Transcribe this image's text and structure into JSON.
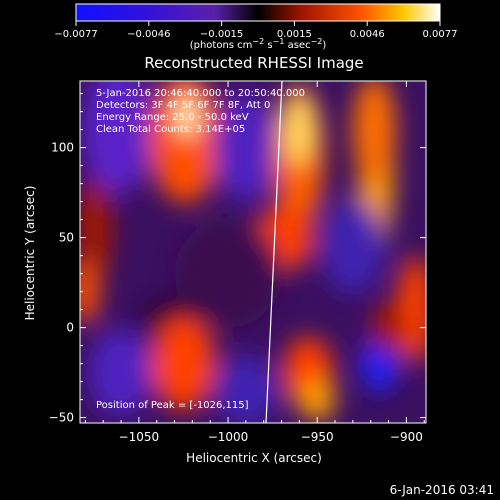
{
  "colorbar": {
    "ticks": [
      "-0.0077",
      "-0.0046",
      "-0.0015",
      "0.0015",
      "0.0046",
      "0.0077"
    ],
    "unit_html": "(photons cm<tspan baseline-shift='super' font-size='8'>−2</tspan> s<tspan baseline-shift='super' font-size='8'>−1</tspan> asec<tspan baseline-shift='super' font-size='8'>−2</tspan>)"
  },
  "chart_data": {
    "type": "heatmap",
    "title": "Reconstructed RHESSI Image",
    "xlabel": "Heliocentric X (arcsec)",
    "ylabel": "Heliocentric Y (arcsec)",
    "xlim": [
      -1083,
      -889
    ],
    "ylim": [
      -53,
      137
    ],
    "x_ticks": [
      -1050,
      -1000,
      -950,
      -900
    ],
    "y_ticks": [
      -50,
      0,
      50,
      100
    ],
    "colormap": [
      "#1010ff",
      "#4800c8",
      "#6a20a0",
      "#000000",
      "#a01400",
      "#ff5000",
      "#ffc800",
      "#ffffff"
    ],
    "value_range": [
      -0.0077,
      0.0077
    ],
    "annotations": [
      "5-Jan-2016 20:46:40.000 to 20:50:40.000",
      "Detectors: 3F 4F 5F 6F 7F 8F, Att 0",
      "Energy Range: 25.0 - 50.0 keV",
      "Clean     Total Counts: 3.14E+05"
    ],
    "peak_label": "Position of Peak = [-1026,115]",
    "limb_color": "#ffffff"
  },
  "footer": {
    "timestamp": "6-Jan-2016 03:41"
  }
}
